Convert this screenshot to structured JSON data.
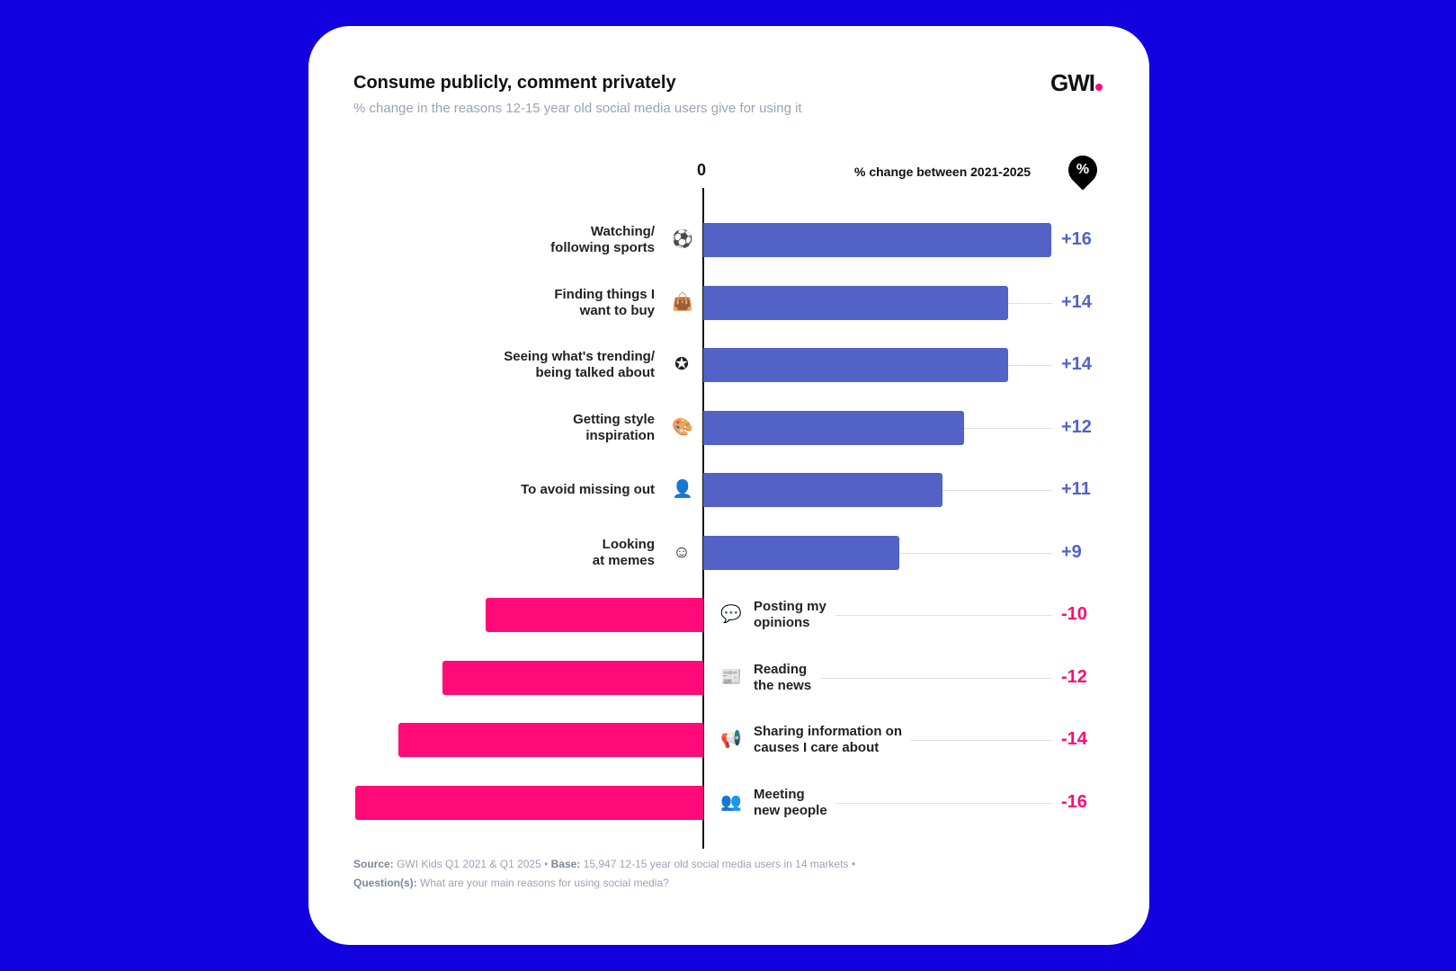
{
  "header": {
    "title": "Consume publicly, comment privately",
    "subtitle": "% change in the reasons 12-15 year old social media users give for using it",
    "logo": "GWI"
  },
  "footer": {
    "source_label": "Source:",
    "source": "GWI Kids Q1 2021 & Q1 2025 •",
    "base_label": "Base:",
    "base": "15,947 12-15 year old social media users in 14 markets •",
    "question_label": "Question(s):",
    "question": "What are your main reasons for using social media?"
  },
  "colors": {
    "background": "#1200df",
    "positive": "#5262c7",
    "negative": "#ff0a78"
  },
  "chart_data": {
    "type": "bar",
    "orientation": "horizontal-diverging",
    "title": "Consume publicly, comment privately",
    "axis_zero_label": "0",
    "legend": "% change between 2021-2025",
    "legend_badge": "%",
    "categories": [
      {
        "label": "Watching/\nfollowing sports",
        "icon": "soccer-ball-icon",
        "glyph": "⚽"
      },
      {
        "label": "Finding things I\nwant to buy",
        "icon": "shopping-bag-icon",
        "glyph": "👜"
      },
      {
        "label": "Seeing what's trending/\nbeing talked about",
        "icon": "trending-star-icon",
        "glyph": "✪"
      },
      {
        "label": "Getting style\ninspiration",
        "icon": "palette-icon",
        "glyph": "🎨"
      },
      {
        "label": "To avoid missing out",
        "icon": "person-heart-icon",
        "glyph": "👤"
      },
      {
        "label": "Looking\nat memes",
        "icon": "smiley-icon",
        "glyph": "☺"
      },
      {
        "label": "Posting my\nopinions",
        "icon": "speech-person-icon",
        "glyph": "💬"
      },
      {
        "label": "Reading\nthe news",
        "icon": "news-icon",
        "glyph": "📰"
      },
      {
        "label": "Sharing information on\ncauses I care about",
        "icon": "megaphone-icon",
        "glyph": "📢"
      },
      {
        "label": "Meeting\nnew people",
        "icon": "people-icon",
        "glyph": "👥"
      }
    ],
    "values": [
      16,
      14,
      14,
      12,
      11,
      9,
      -10,
      -12,
      -14,
      -16
    ],
    "value_labels": [
      "+16",
      "+14",
      "+14",
      "+12",
      "+11",
      "+9",
      "-10",
      "-12",
      "-14",
      "-16"
    ],
    "xlim": [
      -16,
      16
    ]
  }
}
